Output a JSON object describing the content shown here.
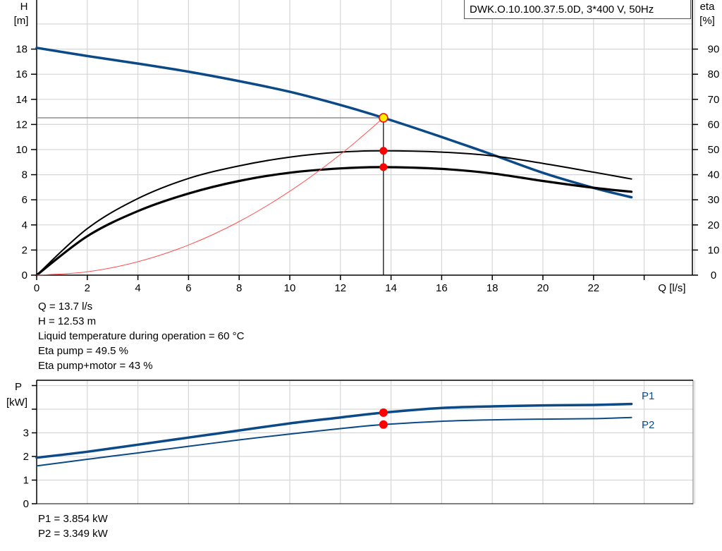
{
  "title": "DWK.O.10.100.37.5.0D, 3*400 V, 50Hz",
  "colors": {
    "head_curve": "#0b4a86",
    "eta_curves": "#000000",
    "system_curve": "#ff5050",
    "operating_point": "#ff0000",
    "duty_point_fill": "#ffee00",
    "grid": "#d6d6d6",
    "power_curves": "#0b4a86",
    "power_label": "#0b4a86"
  },
  "main_chart": {
    "left_axis": {
      "name": "H",
      "unit": "[m]"
    },
    "right_axis": {
      "name": "eta",
      "unit": "[%]"
    },
    "x_axis_label": "Q [l/s]"
  },
  "power_chart": {
    "y_axis": {
      "name": "P",
      "unit": "[kW]"
    },
    "labels": {
      "p1": "P1",
      "p2": "P2"
    }
  },
  "operating_info": {
    "q": "Q = 13.7 l/s",
    "h": "H = 12.53 m",
    "temp": "Liquid temperature during operation = 60 °C",
    "eta_pump": "Eta pump = 49.5 %",
    "eta_total": "Eta pump+motor = 43 %"
  },
  "power_info": {
    "p1": "P1 = 3.854 kW",
    "p2": "P2 = 3.349 kW"
  },
  "chart_data": [
    {
      "type": "line",
      "title": "DWK.O.10.100.37.5.0D, 3*400 V, 50Hz",
      "xlabel": "Q [l/s]",
      "ylabel": "H [m]",
      "y2label": "eta [%]",
      "xlim": [
        0,
        26
      ],
      "ylim": [
        0,
        20
      ],
      "y2lim": [
        0,
        100
      ],
      "x_ticks": [
        0,
        2,
        4,
        6,
        8,
        10,
        12,
        14,
        16,
        18,
        20,
        22
      ],
      "y_ticks": [
        0,
        2,
        4,
        6,
        8,
        10,
        12,
        14,
        16,
        18
      ],
      "y2_ticks": [
        0,
        10,
        20,
        30,
        40,
        50,
        60,
        70,
        80,
        90
      ],
      "grid": true,
      "series": [
        {
          "name": "H (head)",
          "axis": "left",
          "x": [
            0,
            2,
            4,
            6,
            8,
            10,
            12,
            13.7,
            16,
            18,
            20,
            22,
            23.5
          ],
          "y": [
            18.1,
            17.45,
            16.85,
            16.2,
            15.45,
            14.6,
            13.55,
            12.53,
            11.0,
            9.6,
            8.15,
            6.95,
            6.2
          ]
        },
        {
          "name": "Eta pump",
          "axis": "right",
          "x": [
            0,
            2,
            4,
            6,
            8,
            10,
            12,
            13.7,
            16,
            18,
            20,
            22,
            23.5
          ],
          "y": [
            0,
            18.5,
            30.5,
            38.5,
            43.5,
            47.0,
            49.0,
            49.5,
            49.0,
            47.5,
            44.5,
            41.0,
            38.3
          ]
        },
        {
          "name": "Eta pump+motor",
          "axis": "right",
          "x": [
            0,
            2,
            4,
            6,
            8,
            10,
            12,
            13.7,
            16,
            18,
            20,
            22,
            23.5
          ],
          "y": [
            0,
            15.5,
            25.5,
            32.5,
            37.5,
            40.8,
            42.5,
            43.0,
            42.3,
            40.5,
            37.5,
            34.8,
            33.2
          ]
        },
        {
          "name": "System curve",
          "axis": "left",
          "x": [
            0,
            2,
            4,
            6,
            8,
            10,
            12,
            13.7
          ],
          "y": [
            0,
            0.27,
            1.07,
            2.4,
            4.27,
            6.68,
            9.61,
            12.53
          ]
        }
      ],
      "operating_point": {
        "Q": 13.7,
        "H": 12.53,
        "eta_pump": 49.5,
        "eta_total": 43
      }
    },
    {
      "type": "line",
      "ylabel": "P [kW]",
      "xlim": [
        0,
        26
      ],
      "ylim": [
        0,
        5
      ],
      "y_ticks": [
        0,
        1,
        2,
        3
      ],
      "grid": true,
      "series": [
        {
          "name": "P1",
          "x": [
            0,
            2,
            4,
            6,
            8,
            10,
            12,
            13.7,
            16,
            18,
            20,
            22,
            23.5
          ],
          "y": [
            1.95,
            2.2,
            2.5,
            2.8,
            3.1,
            3.4,
            3.65,
            3.854,
            4.05,
            4.12,
            4.16,
            4.18,
            4.22
          ]
        },
        {
          "name": "P2",
          "x": [
            0,
            2,
            4,
            6,
            8,
            10,
            12,
            13.7,
            16,
            18,
            20,
            22,
            23.5
          ],
          "y": [
            1.6,
            1.88,
            2.15,
            2.43,
            2.7,
            2.95,
            3.18,
            3.349,
            3.49,
            3.55,
            3.58,
            3.6,
            3.65
          ]
        }
      ],
      "operating_point": {
        "Q": 13.7,
        "P1": 3.854,
        "P2": 3.349
      }
    }
  ]
}
